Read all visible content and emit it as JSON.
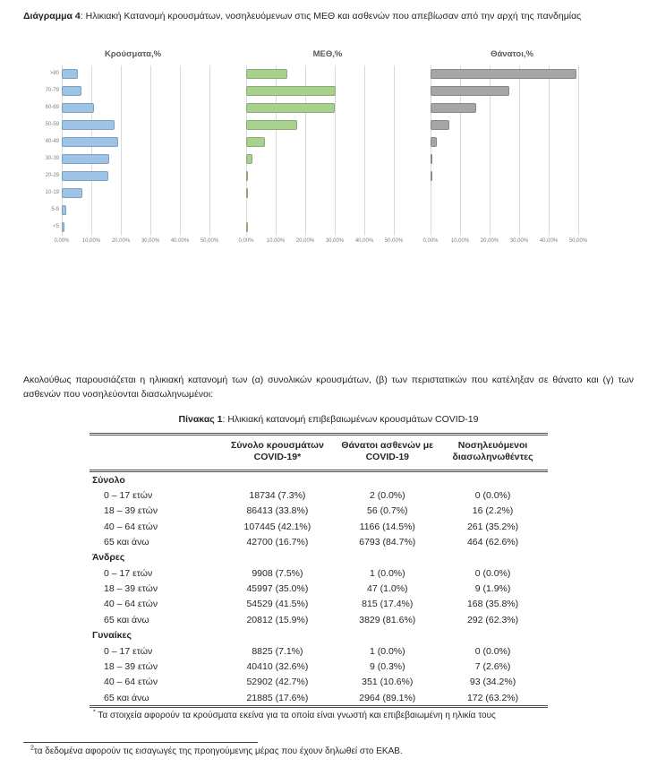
{
  "page": {
    "heading_bold": "Διάγραμμα 4",
    "heading_rest": ": Ηλικιακή Κατανομή κρουσμάτων, νοσηλευόμενων στις ΜΕΘ και ασθενών που απεβίωσαν από την αρχή της πανδημίας",
    "paragraph": "Ακολούθως παρουσιάζεται η ηλικιακή κατανομή των (α) συνολικών κρουσμάτων, (β) των περιστατικών που κατέληξαν σε θάνατο και (γ) των ασθενών που νοσηλεύονται διασωληνωμένοι:",
    "table_title_bold": "Πίνακας 1",
    "table_title_rest": ": Ηλικιακή κατανομή επιβεβαιωμένων κρουσμάτων COVID-19",
    "table_footnote_mark": "*",
    "table_footnote": " Τα στοιχεία αφορούν τα κρούσματα εκείνα για τα οποία είναι γνωστή και επιβεβαιωμένη η ηλικία τους",
    "bottom_footnote_mark": "2",
    "bottom_footnote": "τα δεδομένα αφορούν τις εισαγωγές της προηγούμενης μέρας που έχουν δηλωθεί στο ΕΚΑΒ."
  },
  "chart_data": [
    {
      "type": "bar",
      "orientation": "horizontal",
      "title": "Κρούσματα,%",
      "categories": [
        ">80",
        "70-79",
        "60-69",
        "50-59",
        "40-49",
        "30-39",
        "20-29",
        "10-19",
        "5-9",
        "<5"
      ],
      "values": [
        5.4,
        6.6,
        10.8,
        17.8,
        19.0,
        16.1,
        15.9,
        7.1,
        1.5,
        0.9
      ],
      "x_ticks": [
        "0,00%",
        "10,00%",
        "20,00%",
        "30,00%",
        "40,00%",
        "50,00%"
      ],
      "xlim": [
        0,
        55
      ],
      "grid": true,
      "color": "#9dc3e6",
      "show_category_labels": true
    },
    {
      "type": "bar",
      "orientation": "horizontal",
      "title": "ΜΕΘ,%",
      "categories": [
        ">80",
        "70-79",
        "60-69",
        "50-59",
        "40-49",
        "30-39",
        "20-29",
        "10-19",
        "5-9",
        "<5"
      ],
      "values": [
        14.0,
        30.3,
        30.1,
        17.2,
        6.3,
        2.1,
        0.6,
        0.1,
        0.0,
        0.1
      ],
      "x_ticks": [
        "0,00%",
        "10,00%",
        "20,00%",
        "30,00%",
        "40,00%",
        "50,00%"
      ],
      "xlim": [
        0,
        55
      ],
      "grid": true,
      "color": "#a9d18e",
      "show_category_labels": false
    },
    {
      "type": "bar",
      "orientation": "horizontal",
      "title": "Θάνατοι,%",
      "categories": [
        ">80",
        "70-79",
        "60-69",
        "50-59",
        "40-49",
        "30-39",
        "20-29",
        "10-19",
        "5-9",
        "<5"
      ],
      "values": [
        49.4,
        26.6,
        15.5,
        6.4,
        2.1,
        0.7,
        0.1,
        0.0,
        0.0,
        0.0
      ],
      "x_ticks": [
        "0,00%",
        "10,00%",
        "20,00%",
        "30,00%",
        "40,00%",
        "50,00%"
      ],
      "xlim": [
        0,
        55
      ],
      "grid": true,
      "color": "#a6a6a6",
      "show_category_labels": false
    }
  ],
  "table": {
    "headers": [
      "",
      "Σύνολο κρουσμάτων\nCOVID-19*",
      "Θάνατοι ασθενών με\nCOVID-19",
      "Νοσηλευόμενοι\nδιασωληνωθέντες"
    ],
    "sections": [
      {
        "name": "Σύνολο",
        "rows": [
          [
            "0 – 17 ετών",
            "18734 (7.3%)",
            "2 (0.0%)",
            "0 (0.0%)"
          ],
          [
            "18 – 39 ετών",
            "86413 (33.8%)",
            "56 (0.7%)",
            "16 (2.2%)"
          ],
          [
            "40 – 64 ετών",
            "107445 (42.1%)",
            "1166 (14.5%)",
            "261 (35.2%)"
          ],
          [
            "65 και άνω",
            "42700 (16.7%)",
            "6793 (84.7%)",
            "464 (62.6%)"
          ]
        ]
      },
      {
        "name": "Άνδρες",
        "rows": [
          [
            "0 – 17 ετών",
            "9908 (7.5%)",
            "1 (0.0%)",
            "0 (0.0%)"
          ],
          [
            "18 – 39 ετών",
            "45997 (35.0%)",
            "47 (1.0%)",
            "9 (1.9%)"
          ],
          [
            "40 – 64 ετών",
            "54529 (41.5%)",
            "815 (17.4%)",
            "168 (35.8%)"
          ],
          [
            "65 και άνω",
            "20812 (15.9%)",
            "3829 (81.6%)",
            "292 (62.3%)"
          ]
        ]
      },
      {
        "name": "Γυναίκες",
        "rows": [
          [
            "0 – 17 ετών",
            "8825 (7.1%)",
            "1 (0.0%)",
            "0 (0.0%)"
          ],
          [
            "18 – 39 ετών",
            "40410 (32.6%)",
            "9 (0.3%)",
            "7 (2.6%)"
          ],
          [
            "40 – 64 ετών",
            "52902 (42.7%)",
            "351 (10.6%)",
            "93 (34.2%)"
          ],
          [
            "65 και άνω",
            "21885 (17.6%)",
            "2964 (89.1%)",
            "172 (63.2%)"
          ]
        ]
      }
    ]
  },
  "colors": {
    "cases_bar": "#9dc3e6",
    "icu_bar": "#a9d18e",
    "deaths_bar": "#a6a6a6",
    "gridline": "#d9d9d9",
    "muted_text": "#7f7f7f",
    "body_text": "#262626"
  }
}
